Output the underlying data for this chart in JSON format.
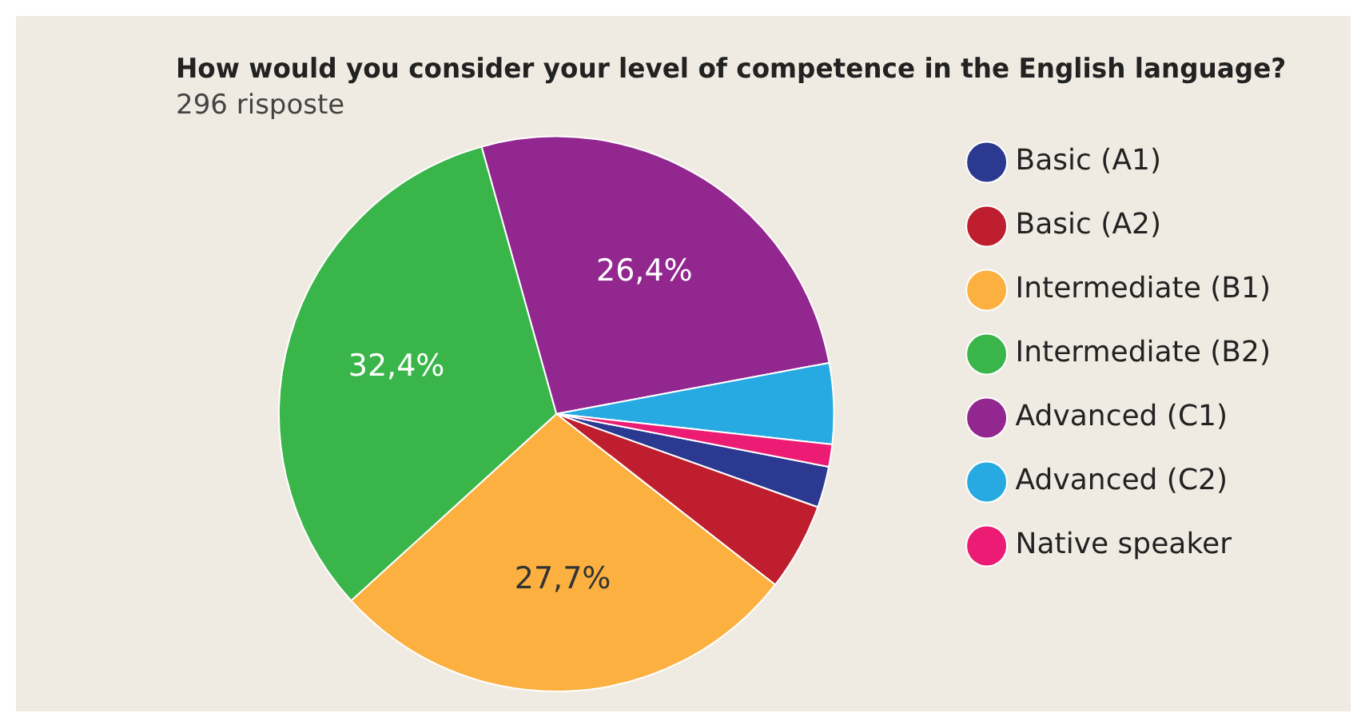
{
  "chart_data": {
    "type": "pie",
    "title": "How would you consider your level of competence in the English language?",
    "subtitle": "296 risposte",
    "categories": [
      "Basic (A1)",
      "Basic (A2)",
      "Intermediate (B1)",
      "Intermediate (B2)",
      "Advanced (C1)",
      "Advanced (C2)",
      "Native speaker"
    ],
    "values": [
      2.4,
      5.1,
      27.7,
      32.4,
      26.4,
      4.7,
      1.3
    ],
    "colors": [
      "#2b3990",
      "#be1e2d",
      "#fbb040",
      "#39b54a",
      "#92278f",
      "#27aae1",
      "#ec1c74"
    ],
    "value_labels": [
      null,
      null,
      "27,7%",
      "32,4%",
      "26,4%",
      null,
      null
    ],
    "legend": "right"
  }
}
